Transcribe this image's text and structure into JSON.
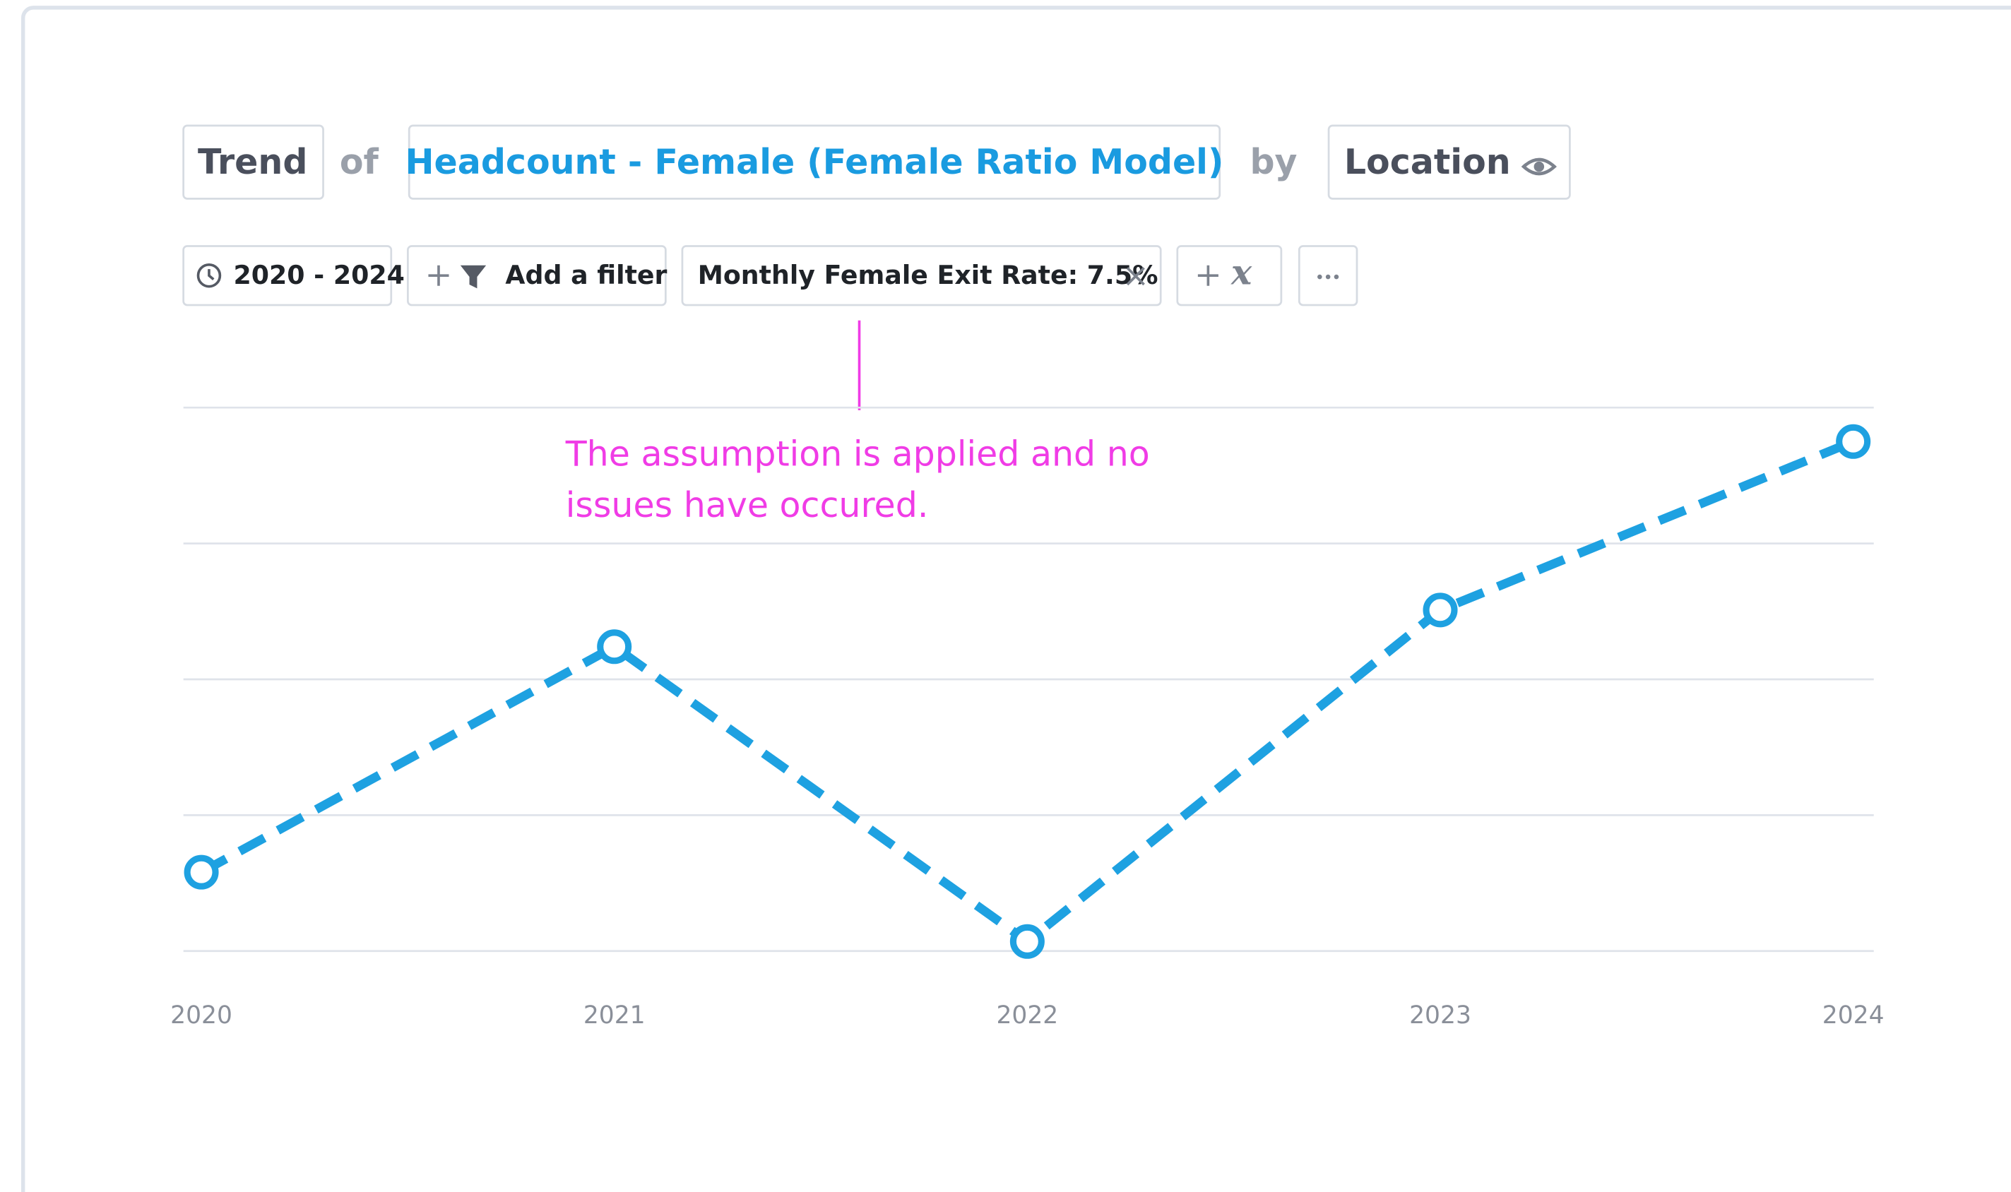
{
  "header": {
    "type": "Trend",
    "of": "of",
    "metric": "Headcount - Female (Female Ratio Model)",
    "by": "by",
    "dimension": "Location"
  },
  "filters": {
    "date_range": "2020 - 2024",
    "add_filter": "Add a filter",
    "assumption": "Monthly Female Exit Rate: 7.5%",
    "variable": "x"
  },
  "annotation": {
    "lines": [
      "The assumption is applied and no",
      "issues have occured."
    ]
  },
  "chart_data": {
    "type": "line",
    "categories": [
      "2020",
      "2021",
      "2022",
      "2023",
      "2024"
    ],
    "values": [
      0.58,
      2.24,
      0.07,
      2.51,
      3.75
    ],
    "color": "#1ea1e1",
    "ylim": [
      0,
      4
    ],
    "yticks": [
      0,
      1,
      2,
      3,
      4
    ],
    "grid": true
  }
}
